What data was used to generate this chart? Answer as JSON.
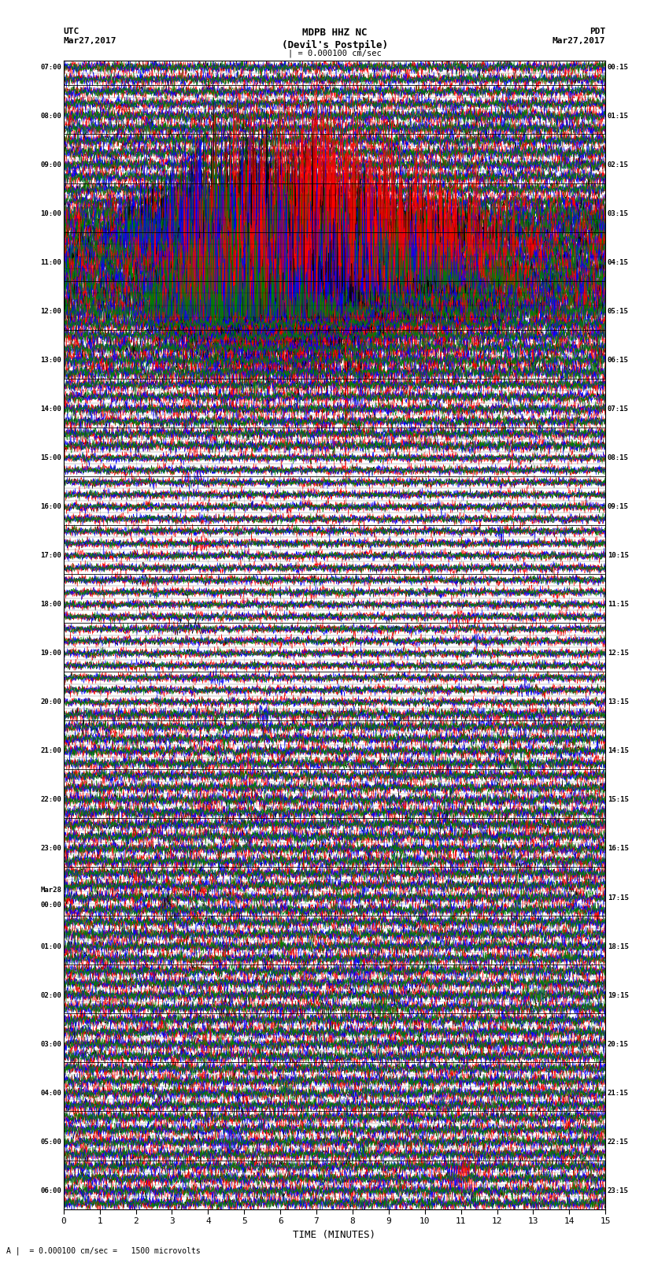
{
  "title_center": "MDPB HHZ NC\n(Devil's Postpile)",
  "title_left": "UTC\nMar27,2017",
  "title_right": "PDT\nMar27,2017",
  "scale_label": "| = 0.000100 cm/sec",
  "bottom_label": "A |  = 0.000100 cm/sec =   1500 microvolts",
  "xlabel": "TIME (MINUTES)",
  "xlim": [
    0,
    15
  ],
  "xticks": [
    0,
    1,
    2,
    3,
    4,
    5,
    6,
    7,
    8,
    9,
    10,
    11,
    12,
    13,
    14,
    15
  ],
  "fig_width": 8.5,
  "fig_height": 16.13,
  "dpi": 100,
  "colors": [
    "black",
    "red",
    "blue",
    "green"
  ],
  "left_times": [
    "07:00",
    "",
    "",
    "",
    "08:00",
    "",
    "",
    "",
    "09:00",
    "",
    "",
    "",
    "10:00",
    "",
    "",
    "",
    "11:00",
    "",
    "",
    "",
    "12:00",
    "",
    "",
    "",
    "13:00",
    "",
    "",
    "",
    "14:00",
    "",
    "",
    "",
    "15:00",
    "",
    "",
    "",
    "16:00",
    "",
    "",
    "",
    "17:00",
    "",
    "",
    "",
    "18:00",
    "",
    "",
    "",
    "19:00",
    "",
    "",
    "",
    "20:00",
    "",
    "",
    "",
    "21:00",
    "",
    "",
    "",
    "22:00",
    "",
    "",
    "",
    "23:00",
    "",
    "",
    "",
    "Mar28\n00:00",
    "",
    "",
    "",
    "01:00",
    "",
    "",
    "",
    "02:00",
    "",
    "",
    "",
    "03:00",
    "",
    "",
    "",
    "04:00",
    "",
    "",
    "",
    "05:00",
    "",
    "",
    "",
    "06:00",
    ""
  ],
  "right_times": [
    "00:15",
    "",
    "",
    "",
    "01:15",
    "",
    "",
    "",
    "02:15",
    "",
    "",
    "",
    "03:15",
    "",
    "",
    "",
    "04:15",
    "",
    "",
    "",
    "05:15",
    "",
    "",
    "",
    "06:15",
    "",
    "",
    "",
    "07:15",
    "",
    "",
    "",
    "08:15",
    "",
    "",
    "",
    "09:15",
    "",
    "",
    "",
    "10:15",
    "",
    "",
    "",
    "11:15",
    "",
    "",
    "",
    "12:15",
    "",
    "",
    "",
    "13:15",
    "",
    "",
    "",
    "14:15",
    "",
    "",
    "",
    "15:15",
    "",
    "",
    "",
    "16:15",
    "",
    "",
    "",
    "17:15",
    "",
    "",
    "",
    "18:15",
    "",
    "",
    "",
    "19:15",
    "",
    "",
    "",
    "20:15",
    "",
    "",
    "",
    "21:15",
    "",
    "",
    "",
    "22:15",
    "",
    "",
    "",
    "23:15",
    ""
  ],
  "n_rows": 94,
  "n_cols": 4,
  "noise_seed": 42,
  "n_points": 1500,
  "group_size": 4,
  "vertical_grid_positions": [
    1,
    2,
    3,
    4,
    5,
    6,
    7,
    8,
    9,
    10,
    11,
    12,
    13,
    14
  ],
  "background_color": "white",
  "grid_color": "#888888",
  "separator_color": "black"
}
